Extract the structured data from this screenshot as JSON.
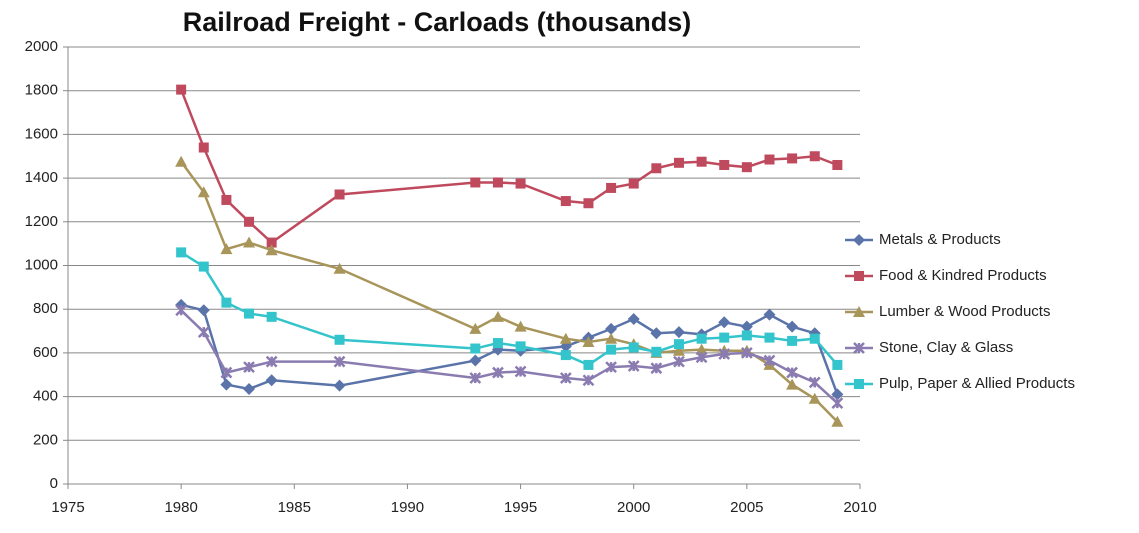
{
  "chart_data": {
    "type": "line",
    "title": "Railroad Freight - Carloads (thousands)",
    "x": [
      1980,
      1981,
      1982,
      1983,
      1984,
      1987,
      1993,
      1994,
      1995,
      1997,
      1998,
      1999,
      2000,
      2001,
      2002,
      2003,
      2004,
      2005,
      2006,
      2007,
      2008,
      2009
    ],
    "xlim": [
      1975,
      2010
    ],
    "xticks": [
      1975,
      1980,
      1985,
      1990,
      1995,
      2000,
      2005,
      2010
    ],
    "ylim": [
      0,
      2000
    ],
    "yticks": [
      0,
      200,
      400,
      600,
      800,
      1000,
      1200,
      1400,
      1600,
      1800,
      2000
    ],
    "grid": true,
    "legend": "right",
    "series": [
      {
        "name": "Metals & Products",
        "color": "#5a74aa",
        "marker": "diamond",
        "values": [
          820,
          795,
          455,
          435,
          475,
          450,
          565,
          615,
          610,
          630,
          670,
          710,
          755,
          690,
          695,
          685,
          740,
          720,
          775,
          720,
          690,
          410
        ]
      },
      {
        "name": "Food & Kindred Products",
        "color": "#bf4a5e",
        "marker": "square",
        "values": [
          1805,
          1540,
          1300,
          1200,
          1105,
          1325,
          1380,
          1380,
          1375,
          1295,
          1285,
          1355,
          1375,
          1445,
          1470,
          1475,
          1460,
          1450,
          1485,
          1490,
          1500,
          1460
        ]
      },
      {
        "name": "Lumber & Wood Products",
        "color": "#a8955a",
        "marker": "triangle",
        "values": [
          1475,
          1335,
          1075,
          1105,
          1070,
          985,
          710,
          765,
          720,
          665,
          650,
          665,
          640,
          600,
          610,
          615,
          610,
          610,
          545,
          455,
          390,
          285
        ]
      },
      {
        "name": "Stone, Clay & Glass",
        "color": "#8a7bb0",
        "marker": "cross",
        "values": [
          795,
          695,
          510,
          535,
          560,
          560,
          485,
          510,
          515,
          485,
          475,
          535,
          540,
          530,
          560,
          580,
          595,
          600,
          565,
          510,
          465,
          370
        ]
      },
      {
        "name": "Pulp, Paper & Allied Products",
        "color": "#33c4cc",
        "marker": "square",
        "values": [
          1060,
          995,
          830,
          780,
          765,
          660,
          620,
          645,
          630,
          590,
          545,
          615,
          625,
          605,
          640,
          665,
          670,
          680,
          670,
          655,
          665,
          545
        ]
      }
    ]
  }
}
